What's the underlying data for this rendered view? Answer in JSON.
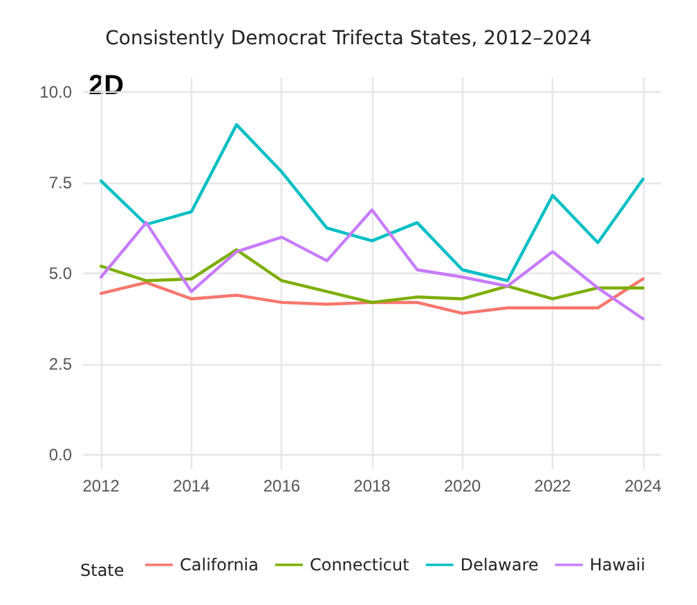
{
  "chart_data": {
    "type": "line",
    "title": "Consistently Democrat Trifecta States, 2012–2024",
    "annotations": [
      "2D"
    ],
    "legend_title": "State",
    "x": [
      2012,
      2013,
      2014,
      2015,
      2016,
      2017,
      2018,
      2019,
      2020,
      2021,
      2022,
      2023,
      2024
    ],
    "series": [
      {
        "name": "California",
        "color": "#f8766d",
        "values": [
          4.45,
          4.75,
          4.3,
          4.4,
          4.2,
          4.15,
          4.2,
          4.2,
          3.9,
          4.05,
          4.05,
          4.05,
          4.85
        ]
      },
      {
        "name": "Connecticut",
        "color": "#7cae00",
        "values": [
          5.2,
          4.8,
          4.85,
          5.65,
          4.8,
          4.5,
          4.2,
          4.35,
          4.3,
          4.65,
          4.3,
          4.6,
          4.6
        ]
      },
      {
        "name": "Delaware",
        "color": "#00bfc4",
        "values": [
          7.55,
          6.35,
          6.7,
          9.1,
          7.8,
          6.25,
          5.9,
          6.4,
          5.1,
          4.8,
          7.15,
          5.85,
          7.6
        ]
      },
      {
        "name": "Hawaii",
        "color": "#c77cff",
        "values": [
          4.9,
          6.4,
          4.5,
          5.6,
          6.0,
          5.35,
          6.75,
          5.1,
          4.9,
          4.65,
          5.6,
          4.6,
          3.75
        ]
      }
    ],
    "xlim": [
      2011.6,
      2024.4
    ],
    "xticks": [
      2012,
      2014,
      2016,
      2018,
      2020,
      2022,
      2024
    ],
    "ylim": [
      -0.4,
      10.4
    ],
    "yticks": [
      {
        "value": 0,
        "label": "0.0"
      },
      {
        "value": 2.5,
        "label": "2.5"
      },
      {
        "value": 5,
        "label": "5.0"
      },
      {
        "value": 7.5,
        "label": "7.5"
      },
      {
        "value": 10,
        "label": "10.0"
      }
    ],
    "grid": true,
    "legend": "bottom",
    "marker": "none",
    "line_style": "solid"
  }
}
